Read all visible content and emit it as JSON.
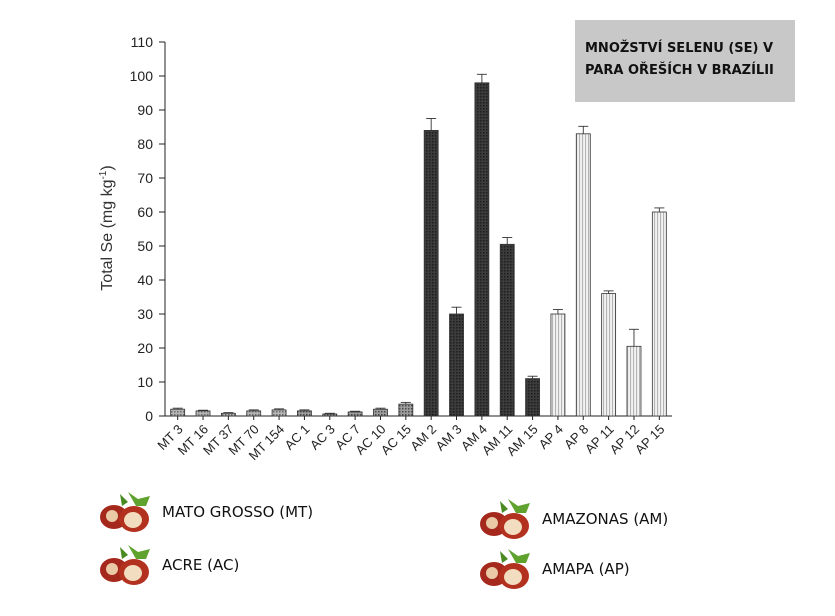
{
  "title_lines": [
    "MNOŽSTVÍ SELENU (SE) V",
    "PARA OŘEŠÍCH V BRAZÍLII"
  ],
  "chart_data": {
    "type": "bar",
    "title": "MNOŽSTVÍ SELENU (SE) V PARA OŘEŠÍCH V BRAZÍLII",
    "xlabel": "",
    "ylabel": "Total Se (mg kg",
    "ylabel_sup": "-1",
    "ylabel_close": ")",
    "ylim": [
      0,
      110
    ],
    "yticks": [
      "0",
      "10",
      "20",
      "30",
      "40",
      "50",
      "60",
      "70",
      "80",
      "90",
      "100",
      "110"
    ],
    "categories": [
      "MT 3",
      "MT 16",
      "MT 37",
      "MT 70",
      "MT 154",
      "AC 1",
      "AC 3",
      "AC 7",
      "AC 10",
      "AC 15",
      "AM 2",
      "AM 3",
      "AM 4",
      "AM 11",
      "AM 15",
      "AP 4",
      "AP 8",
      "AP 11",
      "AP 12",
      "AP 15"
    ],
    "values": [
      2.0,
      1.5,
      0.8,
      1.5,
      1.8,
      1.5,
      0.6,
      1.2,
      2.0,
      3.5,
      84,
      30,
      98,
      50.5,
      11,
      30,
      83,
      36,
      20.5,
      60
    ],
    "errors": [
      0.3,
      0.2,
      0.2,
      0.3,
      0.3,
      0.3,
      0.2,
      0.2,
      0.3,
      0.5,
      3.5,
      2,
      2.5,
      2,
      0.7,
      1.3,
      2.2,
      0.8,
      5,
      1.2
    ],
    "groups": [
      "MT",
      "MT",
      "MT",
      "MT",
      "MT",
      "AC",
      "AC",
      "AC",
      "AC",
      "AC",
      "AM",
      "AM",
      "AM",
      "AM",
      "AM",
      "AP",
      "AP",
      "AP",
      "AP",
      "AP"
    ],
    "group_colors": {
      "MT": "#9a9a9a",
      "AC": "#8a8a8a",
      "AM": "#333333",
      "AP": "#e2e2e2"
    },
    "grid": false
  },
  "legend": [
    {
      "label": "MATO GROSSO  (MT)",
      "icon": "brazil-nut-icon"
    },
    {
      "label": "ACRE (AC)",
      "icon": "brazil-nut-icon"
    },
    {
      "label": "AMAZONAS  (AM)",
      "icon": "brazil-nut-icon"
    },
    {
      "label": "AMAPA (AP)",
      "icon": "brazil-nut-icon"
    }
  ]
}
